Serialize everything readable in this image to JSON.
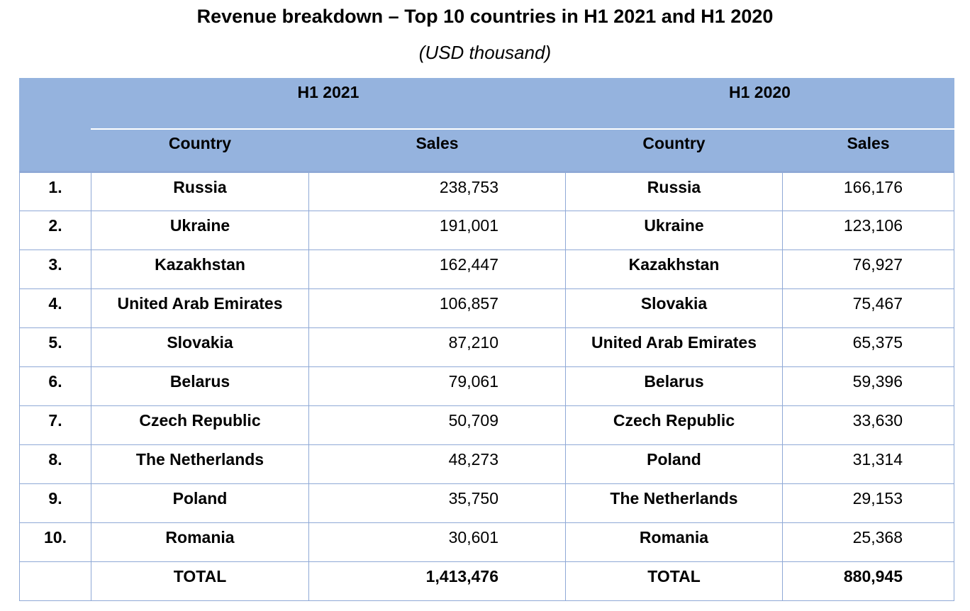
{
  "title": "Revenue breakdown – Top 10 countries in H1 2021 and H1 2020",
  "subtitle": "(USD thousand)",
  "periods": [
    "H1 2021",
    "H1 2020"
  ],
  "columns": {
    "country": "Country",
    "sales": "Sales"
  },
  "rows": [
    {
      "rank": "1.",
      "country_2021": "Russia",
      "sales_2021": "238,753",
      "country_2020": "Russia",
      "sales_2020": "166,176"
    },
    {
      "rank": "2.",
      "country_2021": "Ukraine",
      "sales_2021": "191,001",
      "country_2020": "Ukraine",
      "sales_2020": "123,106"
    },
    {
      "rank": "3.",
      "country_2021": "Kazakhstan",
      "sales_2021": "162,447",
      "country_2020": "Kazakhstan",
      "sales_2020": "76,927"
    },
    {
      "rank": "4.",
      "country_2021": "United Arab Emirates",
      "sales_2021": "106,857",
      "country_2020": "Slovakia",
      "sales_2020": "75,467"
    },
    {
      "rank": "5.",
      "country_2021": "Slovakia",
      "sales_2021": "87,210",
      "country_2020": "United Arab Emirates",
      "sales_2020": "65,375"
    },
    {
      "rank": "6.",
      "country_2021": "Belarus",
      "sales_2021": "79,061",
      "country_2020": "Belarus",
      "sales_2020": "59,396"
    },
    {
      "rank": "7.",
      "country_2021": "Czech Republic",
      "sales_2021": "50,709",
      "country_2020": "Czech Republic",
      "sales_2020": "33,630"
    },
    {
      "rank": "8.",
      "country_2021": "The Netherlands",
      "sales_2021": "48,273",
      "country_2020": "Poland",
      "sales_2020": "31,314"
    },
    {
      "rank": "9.",
      "country_2021": "Poland",
      "sales_2021": "35,750",
      "country_2020": "The Netherlands",
      "sales_2020": "29,153"
    },
    {
      "rank": "10.",
      "country_2021": "Romania",
      "sales_2021": "30,601",
      "country_2020": "Romania",
      "sales_2020": "25,368"
    }
  ],
  "total": {
    "label_2021": "TOTAL",
    "sales_2021": "1,413,476",
    "label_2020": "TOTAL",
    "sales_2020": "880,945"
  },
  "colors": {
    "header_fill": "#95b3de",
    "grid_lines": "#8fa9d6"
  }
}
